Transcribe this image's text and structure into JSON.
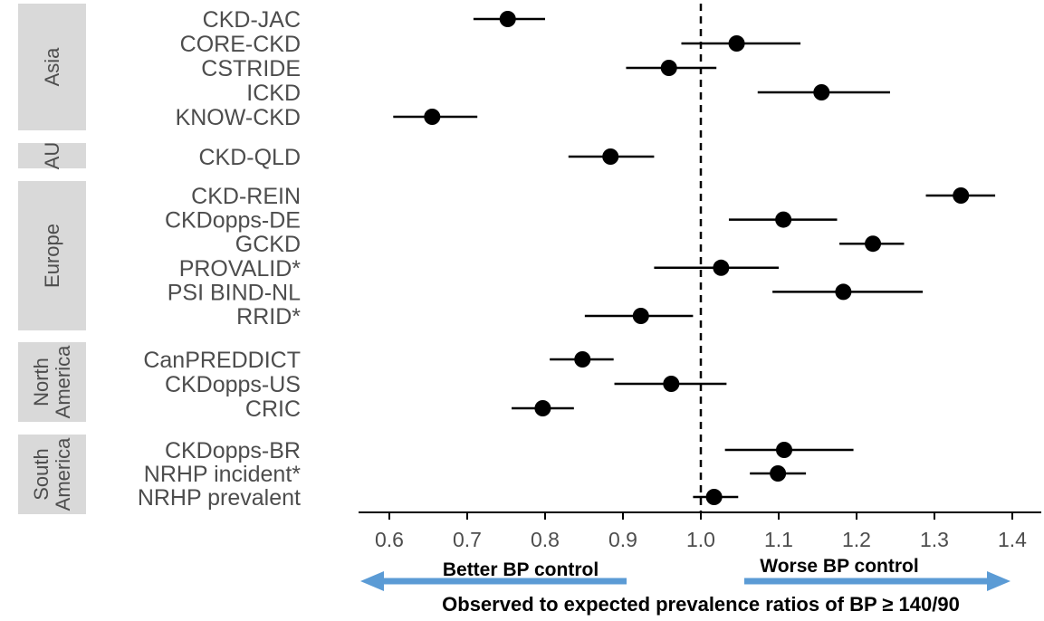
{
  "chart_data": {
    "type": "forest",
    "xlabel": "Observed to expected prevalence ratios of BP ≥ 140/90",
    "xlim": [
      0.555,
      1.445
    ],
    "xticks": [
      "0.6",
      "0.7",
      "0.8",
      "0.9",
      "1.0",
      "1.1",
      "1.2",
      "1.3",
      "1.4"
    ],
    "reference_line": 1.0,
    "annotations": {
      "left": "Better BP control",
      "right": "Worse BP control",
      "arrow_color": "#5b9bd5"
    },
    "groups": [
      {
        "name": "Asia",
        "studies": [
          {
            "label": "CKD-JAC",
            "estimate": 0.752,
            "lower": 0.708,
            "upper": 0.8
          },
          {
            "label": "CORE-CKD",
            "estimate": 1.046,
            "lower": 0.975,
            "upper": 1.128
          },
          {
            "label": "CSTRIDE",
            "estimate": 0.959,
            "lower": 0.904,
            "upper": 1.02
          },
          {
            "label": "ICKD",
            "estimate": 1.155,
            "lower": 1.073,
            "upper": 1.243
          },
          {
            "label": "KNOW-CKD",
            "estimate": 0.655,
            "lower": 0.605,
            "upper": 0.713
          }
        ]
      },
      {
        "name": "AU",
        "studies": [
          {
            "label": "CKD-QLD",
            "estimate": 0.884,
            "lower": 0.83,
            "upper": 0.94
          }
        ]
      },
      {
        "name": "Europe",
        "studies": [
          {
            "label": "CKD-REIN",
            "estimate": 1.334,
            "lower": 1.289,
            "upper": 1.378
          },
          {
            "label": "CKDopps-DE",
            "estimate": 1.106,
            "lower": 1.036,
            "upper": 1.175
          },
          {
            "label": "GCKD",
            "estimate": 1.221,
            "lower": 1.178,
            "upper": 1.261
          },
          {
            "label": "PROVALID*",
            "estimate": 1.026,
            "lower": 0.94,
            "upper": 1.1
          },
          {
            "label": "PSI BIND-NL",
            "estimate": 1.183,
            "lower": 1.092,
            "upper": 1.285
          },
          {
            "label": "RRID*",
            "estimate": 0.923,
            "lower": 0.851,
            "upper": 0.99
          }
        ]
      },
      {
        "name": "North America",
        "studies": [
          {
            "label": "CanPREDDICT",
            "estimate": 0.848,
            "lower": 0.806,
            "upper": 0.888
          },
          {
            "label": "CKDopps-US",
            "estimate": 0.962,
            "lower": 0.889,
            "upper": 1.033
          },
          {
            "label": "CRIC",
            "estimate": 0.797,
            "lower": 0.757,
            "upper": 0.837
          }
        ]
      },
      {
        "name": "South America",
        "studies": [
          {
            "label": "CKDopps-BR",
            "estimate": 1.107,
            "lower": 1.031,
            "upper": 1.196
          },
          {
            "label": "NRHP incident*",
            "estimate": 1.099,
            "lower": 1.063,
            "upper": 1.135
          },
          {
            "label": "NRHP prevalent",
            "estimate": 1.017,
            "lower": 0.99,
            "upper": 1.048
          }
        ]
      }
    ]
  }
}
